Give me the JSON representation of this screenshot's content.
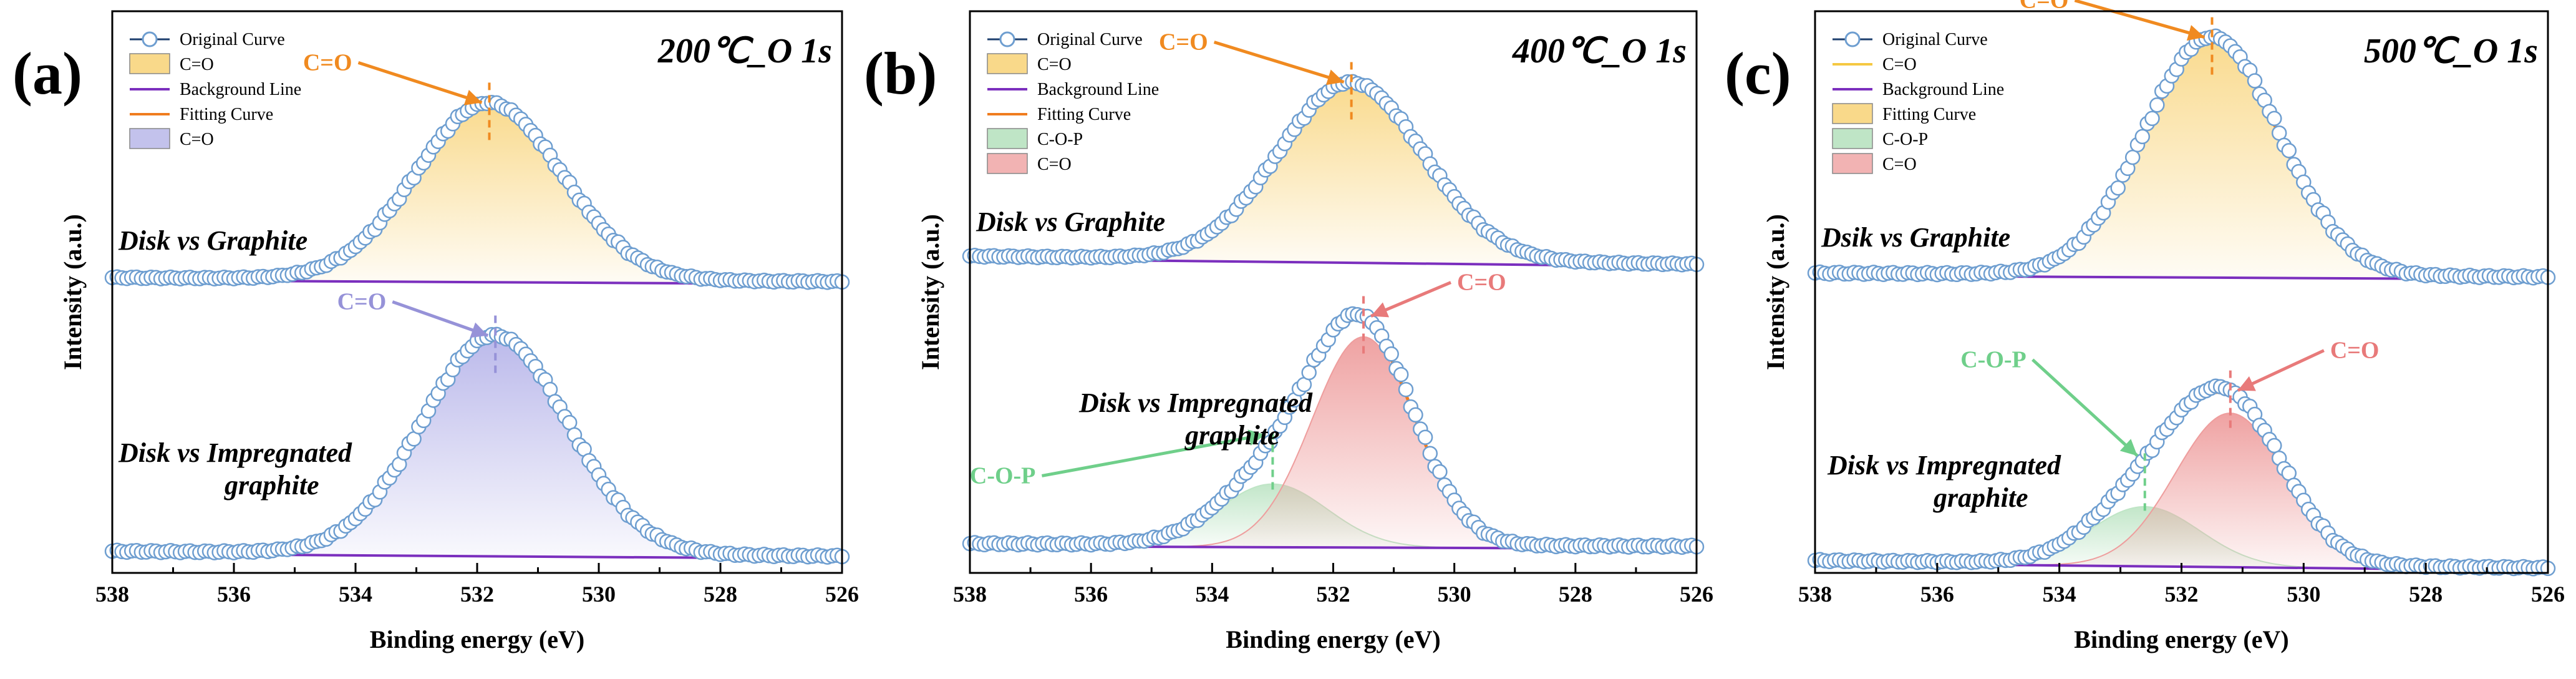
{
  "chart_data": [
    {
      "type": "line",
      "panel_label": "(a)",
      "title": "200℃_O 1s",
      "xlabel": "Binding energy (eV)",
      "ylabel": "Intensity (a.u.)",
      "xlim": [
        538,
        526
      ],
      "x_ticks": [
        538,
        536,
        534,
        532,
        530,
        528,
        526
      ],
      "tick_labels": [
        "538",
        "536",
        "534",
        "532",
        "530",
        "528",
        "526"
      ],
      "legend": [
        {
          "label": "Original Curve",
          "kind": "circle-line"
        },
        {
          "label": "C=O",
          "kind": "fill",
          "color": "#f9d98a"
        },
        {
          "label": "Background Line",
          "kind": "line",
          "color": "#7b2fbe"
        },
        {
          "label": "Fitting Curve",
          "kind": "line",
          "color": "#f07c1e"
        },
        {
          "label": "C=O",
          "kind": "fill",
          "color": "#c3c2ec"
        }
      ],
      "series": [
        {
          "name": "Disk vs Graphite",
          "baseline": 0.06,
          "baseline_end": 0.04,
          "peaks": [
            {
              "name": "C=O",
              "center": 531.8,
              "sigma": 1.2,
              "height": 0.88,
              "color": "#f9d98a"
            }
          ],
          "annotations": [
            {
              "text": "C=O",
              "at": 531.8,
              "color": "#f08a20"
            }
          ]
        },
        {
          "name": "Disk vs Impregnated graphite",
          "baseline": 0.045,
          "baseline_end": 0.025,
          "peaks": [
            {
              "name": "C=O",
              "center": 531.7,
              "sigma": 1.2,
              "height": 0.88,
              "color": "#b9b7ea"
            }
          ],
          "annotations": [
            {
              "text": "C=O",
              "at": 531.7,
              "color": "#9692d8"
            }
          ]
        }
      ]
    },
    {
      "type": "line",
      "panel_label": "(b)",
      "title": "400℃_O 1s",
      "xlabel": "Binding energy (eV)",
      "ylabel": "Intensity (a.u.)",
      "xlim": [
        538,
        526
      ],
      "x_ticks": [
        538,
        536,
        534,
        532,
        530,
        528,
        526
      ],
      "tick_labels": [
        "538",
        "536",
        "534",
        "532",
        "530",
        "528",
        "526"
      ],
      "legend": [
        {
          "label": "Original Curve",
          "kind": "circle-line"
        },
        {
          "label": "C=O",
          "kind": "fill",
          "color": "#f9d98a"
        },
        {
          "label": "Background Line",
          "kind": "line",
          "color": "#7b2fbe"
        },
        {
          "label": "Fitting Curve",
          "kind": "line",
          "color": "#f07c1e"
        },
        {
          "label": "C-O-P",
          "kind": "fill",
          "color": "#bfe5c6"
        },
        {
          "label": "C=O",
          "kind": "fill",
          "color": "#f2b3b3"
        }
      ],
      "series": [
        {
          "name": "Disk vs Graphite",
          "baseline": 0.08,
          "baseline_end": 0.04,
          "peaks": [
            {
              "name": "C=O",
              "center": 531.7,
              "sigma": 1.2,
              "height": 0.88,
              "color": "#f9d98a"
            }
          ],
          "annotations": [
            {
              "text": "C=O",
              "at": 531.7,
              "color": "#f08a20"
            }
          ]
        },
        {
          "name": "Disk vs Impregnated graphite",
          "baseline": 0.04,
          "baseline_end": 0.03,
          "peaks": [
            {
              "name": "C-O-P",
              "center": 533.0,
              "sigma": 0.9,
              "height": 0.24,
              "color": "#bfe5c6"
            },
            {
              "name": "C=O",
              "center": 531.5,
              "sigma": 0.85,
              "height": 0.8,
              "color": "#ee9d9d"
            }
          ],
          "annotations": [
            {
              "text": "C=O",
              "at": 531.5,
              "color": "#e87a7a"
            },
            {
              "text": "C-O-P",
              "at": 533.0,
              "color": "#6fcf8a"
            }
          ]
        }
      ]
    },
    {
      "type": "line",
      "panel_label": "(c)",
      "title": "500℃_O 1s",
      "xlabel": "Binding energy (eV)",
      "ylabel": "Intensity (a.u.)",
      "xlim": [
        538,
        526
      ],
      "x_ticks": [
        538,
        536,
        534,
        532,
        530,
        528,
        526
      ],
      "tick_labels": [
        "538",
        "536",
        "534",
        "532",
        "530",
        "528",
        "526"
      ],
      "legend": [
        {
          "label": "Original Curve",
          "kind": "circle-line"
        },
        {
          "label": "C=O",
          "kind": "line",
          "color": "#f5c842"
        },
        {
          "label": "Background Line",
          "kind": "line",
          "color": "#7b2fbe"
        },
        {
          "label": "Fitting Curve",
          "kind": "fill",
          "color": "#f9d98a"
        },
        {
          "label": "C-O-P",
          "kind": "fill",
          "color": "#bfe5c6"
        },
        {
          "label": "C=O",
          "kind": "fill",
          "color": "#f2b3b3"
        }
      ],
      "series": [
        {
          "name": "Dsik vs Graphite",
          "baseline": 0.045,
          "baseline_end": 0.03,
          "peaks": [
            {
              "name": "C=O",
              "center": 531.5,
              "sigma": 1.1,
              "height": 0.92,
              "color": "#f9d98a"
            }
          ],
          "annotations": [
            {
              "text": "C=O",
              "at": 531.5,
              "color": "#f08a20"
            }
          ]
        },
        {
          "name": "Disk vs Impregnated graphite",
          "baseline": 0.04,
          "baseline_end": 0.01,
          "peaks": [
            {
              "name": "C-O-P",
              "center": 532.6,
              "sigma": 0.9,
              "height": 0.24,
              "color": "#bfe5c6"
            },
            {
              "name": "C=O",
              "center": 531.2,
              "sigma": 0.9,
              "height": 0.62,
              "color": "#ee9d9d"
            }
          ],
          "annotations": [
            {
              "text": "C=O",
              "at": 531.2,
              "color": "#e87a7a"
            },
            {
              "text": "C-O-P",
              "at": 532.6,
              "color": "#6fcf8a"
            }
          ]
        }
      ]
    }
  ]
}
